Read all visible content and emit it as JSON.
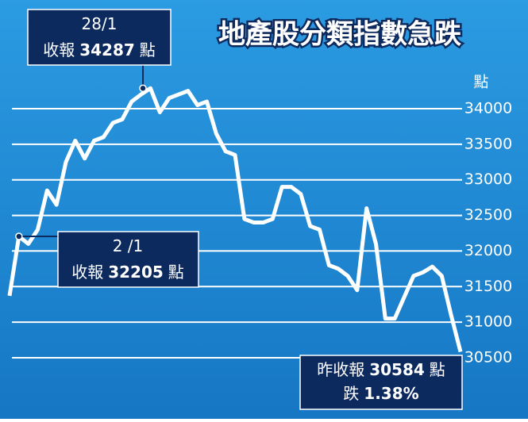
{
  "chart_data": {
    "type": "line",
    "title": "地產股分類指數急跌",
    "y_label": "點",
    "color": "#ffffff",
    "values": [
      31370,
      32205,
      32100,
      32300,
      32850,
      32650,
      33250,
      33550,
      33300,
      33550,
      33600,
      33800,
      33850,
      34100,
      34200,
      34287,
      33950,
      34150,
      34200,
      34250,
      34050,
      34100,
      33650,
      33400,
      33350,
      32450,
      32400,
      32400,
      32450,
      32900,
      32900,
      32800,
      32350,
      32300,
      31800,
      31750,
      31650,
      31450,
      32600,
      32100,
      31050,
      31050,
      31350,
      31650,
      31700,
      31780,
      31650,
      31100,
      30584
    ],
    "ylim": [
      30500,
      34300
    ],
    "yticks": [
      30500,
      31000,
      31500,
      32000,
      32500,
      33000,
      33500,
      34000
    ],
    "grid": true,
    "annotations": [
      {
        "date": "2 /1",
        "prefix": "收報",
        "value": 32205,
        "suffix": "點"
      },
      {
        "date": "28/1",
        "prefix": "收報",
        "value": 34287,
        "suffix": "點"
      }
    ],
    "close": {
      "prefix": "昨收報",
      "value": 30584,
      "suffix": "點",
      "change_prefix": "跌",
      "change": 1.38,
      "change_label": "1.38%"
    }
  }
}
